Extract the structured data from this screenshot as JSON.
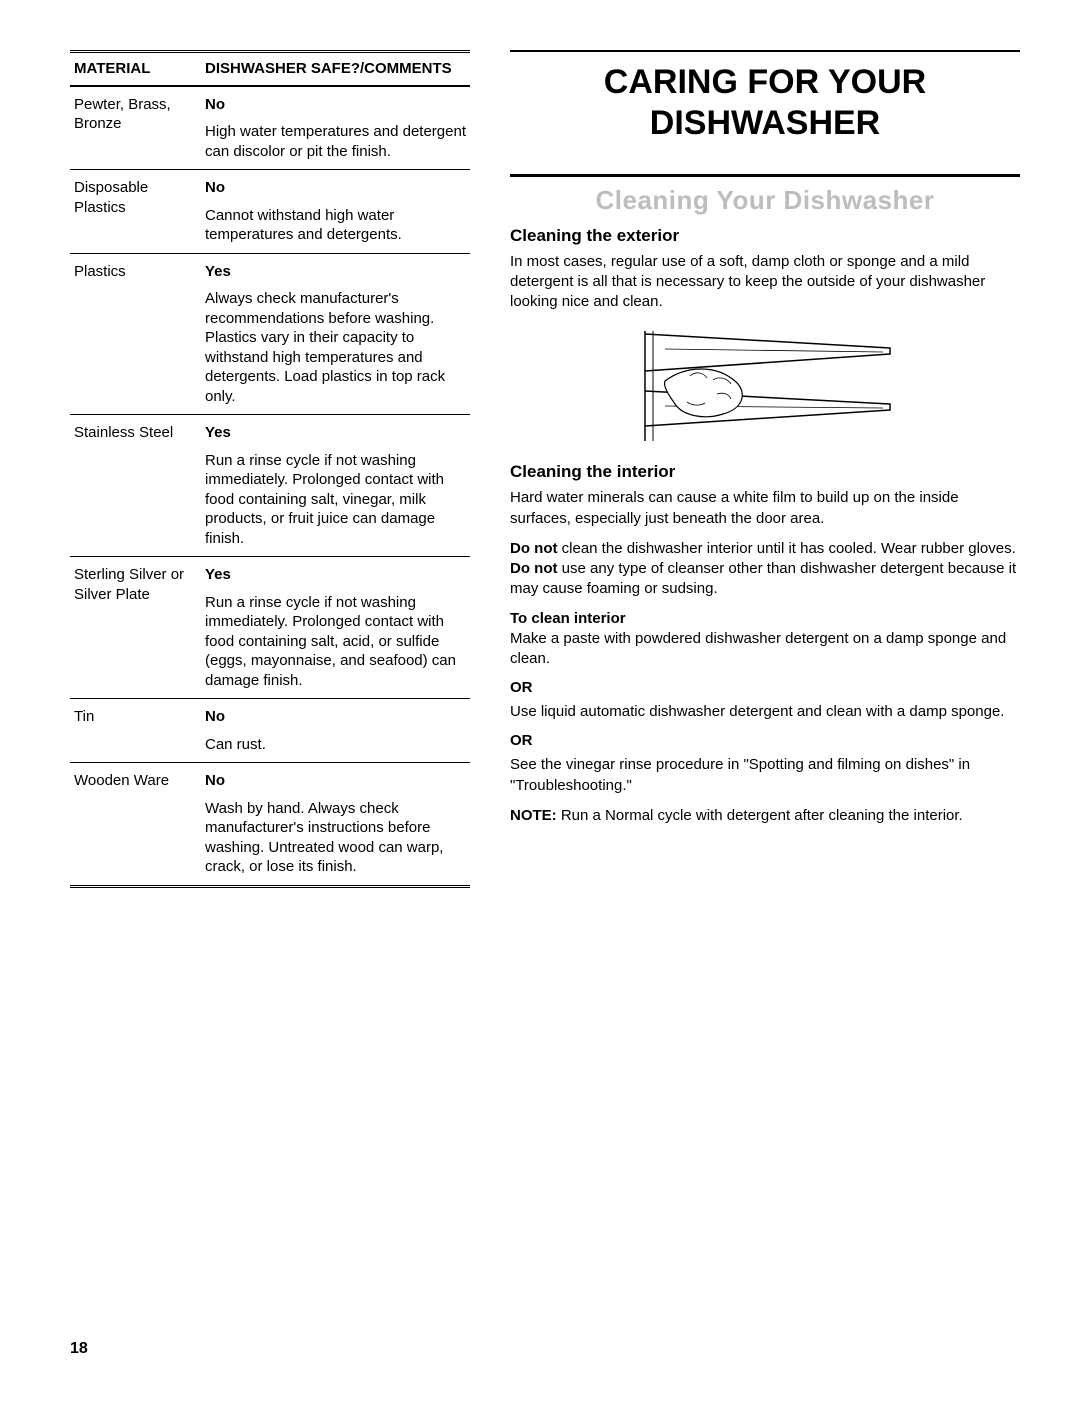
{
  "page_number": "18",
  "table": {
    "header_material": "MATERIAL",
    "header_comments": "DISHWASHER SAFE?/COMMENTS",
    "rows": [
      {
        "material": "Pewter, Brass, Bronze",
        "answer": "No",
        "comments": "High water temperatures and detergent can discolor or pit the finish."
      },
      {
        "material": "Disposable Plastics",
        "answer": "No",
        "comments": "Cannot withstand high water temperatures and detergents."
      },
      {
        "material": "Plastics",
        "answer": "Yes",
        "comments": "Always check manufacturer's recommendations before washing. Plastics vary in their capacity to withstand high temperatures and detergents. Load plastics in top rack only."
      },
      {
        "material": "Stainless Steel",
        "answer": "Yes",
        "comments": "Run a rinse cycle if not washing immediately. Prolonged contact with food containing salt, vinegar, milk products, or fruit juice can damage finish."
      },
      {
        "material": "Sterling Silver or Silver Plate",
        "answer": "Yes",
        "comments": "Run a rinse cycle if not washing immediately. Prolonged contact with food containing salt, acid, or sulfide (eggs, mayonnaise, and seafood) can damage finish."
      },
      {
        "material": "Tin",
        "answer": "No",
        "comments": "Can rust."
      },
      {
        "material": "Wooden Ware",
        "answer": "No",
        "comments": "Wash by hand. Always check manufacturer's instructions before washing. Untreated wood can warp, crack, or lose its finish."
      }
    ]
  },
  "right": {
    "main_title": "CARING FOR YOUR DISHWASHER",
    "section_title": "Cleaning Your Dishwasher",
    "exterior_heading": "Cleaning the exterior",
    "exterior_para": "In most cases, regular use of a soft, damp cloth or sponge and a mild detergent is all that is necessary to keep the outside of your dishwasher looking nice and clean.",
    "interior_heading": "Cleaning the interior",
    "interior_para1": "Hard water minerals can cause a white film to build up on the inside surfaces, especially just beneath the door area.",
    "interior_para2_donot1": "Do not",
    "interior_para2_text1": " clean the dishwasher interior until it has cooled. Wear rubber gloves. ",
    "interior_para2_donot2": "Do not",
    "interior_para2_text2": " use any type of cleanser other than dishwasher detergent because it may cause foaming or sudsing.",
    "to_clean_heading": "To clean interior",
    "method1": "Make a paste with powdered dishwasher detergent on a damp sponge and clean.",
    "or_label": "OR",
    "method2": "Use liquid automatic dishwasher detergent and clean with a damp sponge.",
    "method3": "See the vinegar rinse procedure in \"Spotting and filming on dishes\" in \"Troubleshooting.\"",
    "note_label": "NOTE:",
    "note_text": " Run a Normal cycle with detergent after cleaning the interior."
  }
}
